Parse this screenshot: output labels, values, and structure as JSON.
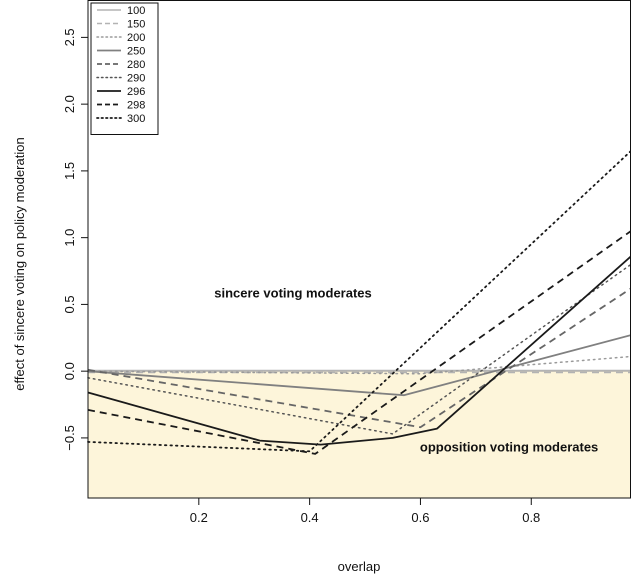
{
  "chart_data": {
    "type": "line",
    "xlabel": "overlap",
    "ylabel": "effect of sincere voting on policy moderation",
    "xlim": [
      0.0,
      0.98
    ],
    "ylim": [
      -0.95,
      2.78
    ],
    "x_ticks": [
      {
        "value": 0.2,
        "label": "0.2"
      },
      {
        "value": 0.4,
        "label": "0.4"
      },
      {
        "value": 0.6,
        "label": "0.6"
      },
      {
        "value": 0.8,
        "label": "0.8"
      }
    ],
    "y_ticks": [
      {
        "value": -0.5,
        "label": "−0.5"
      },
      {
        "value": 0.0,
        "label": "0.0"
      },
      {
        "value": 0.5,
        "label": "0.5"
      },
      {
        "value": 1.0,
        "label": "1.0"
      },
      {
        "value": 1.5,
        "label": "1.5"
      },
      {
        "value": 2.0,
        "label": "2.0"
      },
      {
        "value": 2.5,
        "label": "2.5"
      }
    ],
    "grid": false,
    "legend_position": "top-left",
    "shaded_region": {
      "y_from": -0.95,
      "y_to": 0.0,
      "color": "#fdf5da"
    },
    "zero_line_color": "#9a9a9a",
    "annotations": [
      {
        "text": "sincere voting moderates",
        "x": 0.37,
        "y": 0.55
      },
      {
        "text": "opposition voting moderates",
        "x": 0.76,
        "y": -0.6
      }
    ],
    "series": [
      {
        "name": "100",
        "color": "#b3b3b3",
        "dash": "solid",
        "width": 1.5,
        "x": [
          0.0,
          0.98
        ],
        "y": [
          0.005,
          0.005
        ]
      },
      {
        "name": "150",
        "color": "#b3b3b3",
        "dash": "dashed",
        "width": 1.5,
        "x": [
          0.0,
          0.98
        ],
        "y": [
          -0.01,
          -0.01
        ]
      },
      {
        "name": "200",
        "color": "#9a9a9a",
        "dash": "dotted",
        "width": 1.5,
        "x": [
          0.0,
          0.6,
          0.98
        ],
        "y": [
          0.0,
          -0.02,
          0.11
        ]
      },
      {
        "name": "250",
        "color": "#808080",
        "dash": "solid",
        "width": 1.8,
        "x": [
          0.0,
          0.57,
          0.98
        ],
        "y": [
          0.0,
          -0.18,
          0.27
        ]
      },
      {
        "name": "280",
        "color": "#666666",
        "dash": "dashed",
        "width": 1.8,
        "x": [
          0.0,
          0.6,
          0.98
        ],
        "y": [
          0.01,
          -0.42,
          0.62
        ]
      },
      {
        "name": "290",
        "color": "#555555",
        "dash": "dotted",
        "width": 1.5,
        "x": [
          0.0,
          0.55,
          0.98
        ],
        "y": [
          -0.05,
          -0.47,
          0.8
        ]
      },
      {
        "name": "296",
        "color": "#1a1a1a",
        "dash": "solid",
        "width": 1.8,
        "x": [
          0.0,
          0.31,
          0.42,
          0.55,
          0.63,
          0.98
        ],
        "y": [
          -0.16,
          -0.52,
          -0.55,
          -0.5,
          -0.43,
          0.86
        ]
      },
      {
        "name": "298",
        "color": "#1a1a1a",
        "dash": "dashed",
        "width": 1.8,
        "x": [
          0.0,
          0.41,
          0.98
        ],
        "y": [
          -0.29,
          -0.62,
          1.05
        ]
      },
      {
        "name": "300",
        "color": "#1a1a1a",
        "dash": "dotted",
        "width": 1.8,
        "x": [
          0.0,
          0.4,
          0.98
        ],
        "y": [
          -0.53,
          -0.6,
          1.65
        ]
      }
    ]
  }
}
